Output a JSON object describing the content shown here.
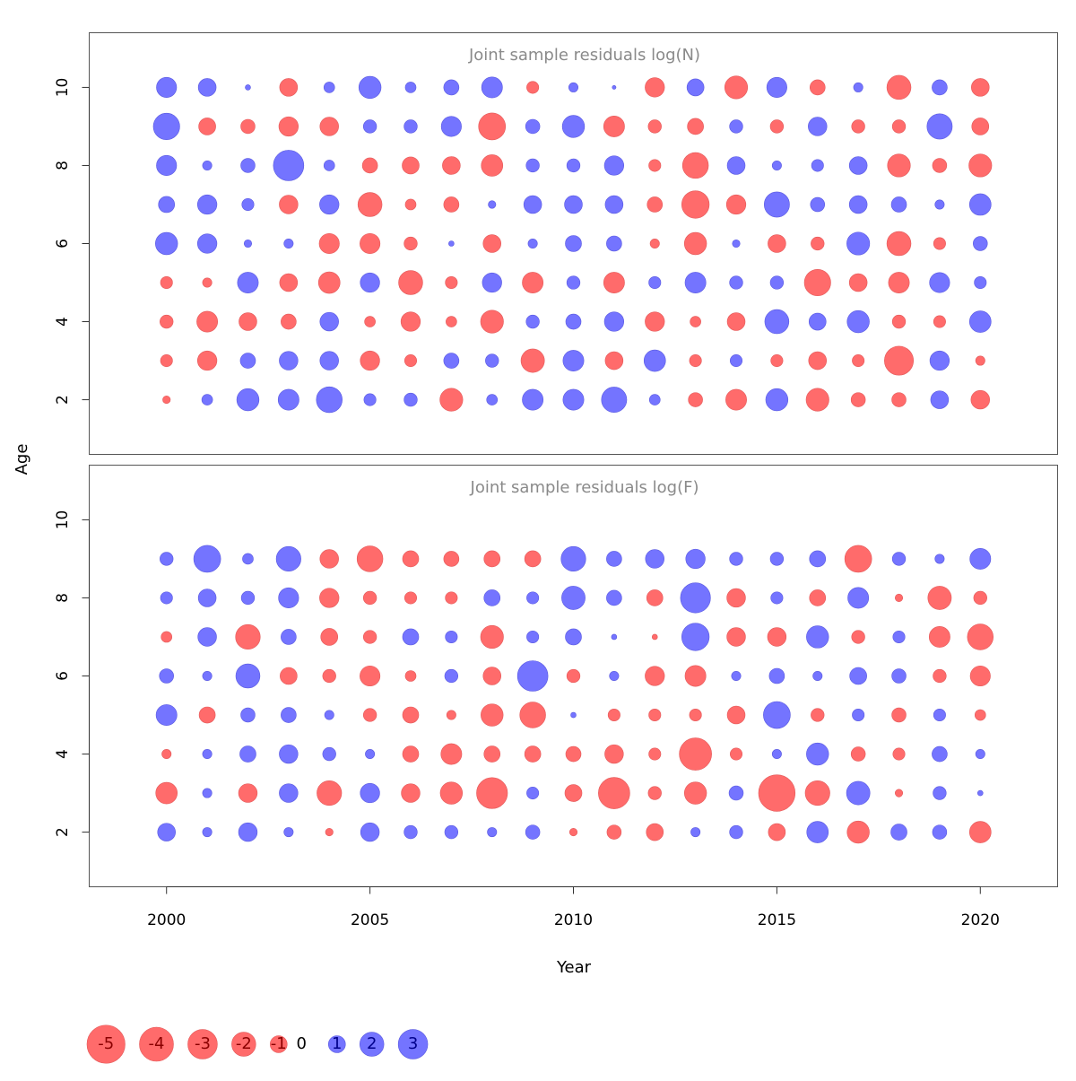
{
  "colors": {
    "negative": "#ff6b6b",
    "positive": "#7474ff",
    "negative_text": "#8b0000",
    "positive_text": "#00008b"
  },
  "chart_data": [
    {
      "type": "scatter",
      "style": "bubble",
      "title": "Joint sample residuals log(N)",
      "xlabel": "Year",
      "ylabel": "Age",
      "xlim": [
        1998.1,
        2021.9
      ],
      "ylim": [
        0.6,
        11.4
      ],
      "xticks": [
        "2000",
        "2005",
        "2010",
        "2015",
        "2020"
      ],
      "yticks": [
        "2",
        "4",
        "6",
        "8",
        "10"
      ],
      "years": [
        2000,
        2001,
        2002,
        2003,
        2004,
        2005,
        2006,
        2007,
        2008,
        2009,
        2010,
        2011,
        2012,
        2013,
        2014,
        2015,
        2016,
        2017,
        2018,
        2019,
        2020
      ],
      "ages": [
        2,
        3,
        4,
        5,
        6,
        7,
        8,
        9,
        10
      ],
      "residuals": [
        [
          -0.2,
          -0.5,
          -0.6,
          -0.5,
          1.7,
          0.9,
          1.4,
          2.4,
          1.4
        ],
        [
          0.4,
          -1.3,
          -1.5,
          -0.3,
          1.3,
          1.3,
          0.3,
          -1.0,
          1.1
        ],
        [
          1.7,
          0.8,
          -1.1,
          1.5,
          0.2,
          0.5,
          0.7,
          -0.7,
          0.1
        ],
        [
          1.5,
          1.2,
          -0.8,
          -1.1,
          0.3,
          -1.2,
          3.2,
          -1.3,
          -1.1
        ],
        [
          2.3,
          1.2,
          1.2,
          -1.6,
          -1.4,
          1.3,
          0.4,
          -1.2,
          0.4
        ],
        [
          0.5,
          -1.3,
          -0.4,
          1.3,
          -1.4,
          -2.0,
          -0.8,
          0.6,
          1.7
        ],
        [
          0.6,
          -0.5,
          -1.3,
          -2.0,
          -0.6,
          -0.4,
          -1.0,
          0.6,
          0.4
        ],
        [
          -1.8,
          0.8,
          -0.4,
          -0.5,
          0.1,
          -0.8,
          -1.1,
          1.4,
          0.8
        ],
        [
          0.4,
          0.6,
          -1.8,
          1.3,
          -1.1,
          0.2,
          -1.6,
          -2.5,
          1.5
        ],
        [
          1.5,
          -1.9,
          0.6,
          -1.5,
          0.3,
          1.1,
          0.6,
          0.7,
          -0.5
        ],
        [
          1.5,
          1.5,
          0.8,
          0.6,
          0.9,
          1.1,
          0.6,
          1.7,
          0.3
        ],
        [
          2.2,
          -1.1,
          1.3,
          -1.5,
          0.8,
          1.1,
          1.3,
          -1.5,
          0.05
        ],
        [
          0.4,
          1.6,
          -1.3,
          0.5,
          -0.3,
          -0.8,
          -0.5,
          -0.6,
          -1.3
        ],
        [
          -0.7,
          -0.5,
          -0.4,
          1.5,
          -1.7,
          -2.6,
          -2.3,
          -0.9,
          1.0
        ],
        [
          -1.5,
          0.5,
          -1.1,
          0.6,
          0.2,
          -1.3,
          1.1,
          0.6,
          -1.8
        ],
        [
          1.7,
          -0.5,
          2.0,
          0.6,
          -1.1,
          2.2,
          0.3,
          -0.6,
          1.4
        ],
        [
          -1.8,
          -1.1,
          1.0,
          -2.4,
          -0.6,
          0.7,
          0.5,
          1.2,
          -0.8
        ],
        [
          -0.7,
          -0.5,
          1.7,
          -1.1,
          1.8,
          1.1,
          1.1,
          -0.6,
          0.3
        ],
        [
          -0.7,
          -2.9,
          -0.6,
          -1.5,
          -2.0,
          0.8,
          -1.8,
          -0.6,
          -2.0
        ],
        [
          1.1,
          1.3,
          -0.5,
          1.4,
          -0.5,
          0.3,
          -0.7,
          2.2,
          0.8
        ],
        [
          -1.2,
          -0.3,
          1.6,
          0.5,
          0.7,
          1.6,
          -1.8,
          -1.0,
          -1.1
        ]
      ]
    },
    {
      "type": "scatter",
      "style": "bubble",
      "title": "Joint sample residuals log(F)",
      "xlabel": "Year",
      "ylabel": "Age",
      "xlim": [
        1998.1,
        2021.9
      ],
      "ylim": [
        0.6,
        11.4
      ],
      "xticks": [
        "2000",
        "2005",
        "2010",
        "2015",
        "2020"
      ],
      "yticks": [
        "2",
        "4",
        "6",
        "8",
        "10"
      ],
      "years": [
        2000,
        2001,
        2002,
        2003,
        2004,
        2005,
        2006,
        2007,
        2008,
        2009,
        2010,
        2011,
        2012,
        2013,
        2014,
        2015,
        2016,
        2017,
        2018,
        2019,
        2020
      ],
      "ages": [
        2,
        3,
        4,
        5,
        6,
        7,
        8,
        9
      ],
      "residuals": [
        [
          1.1,
          -1.6,
          -0.3,
          1.5,
          0.7,
          -0.4,
          0.5,
          0.6
        ],
        [
          0.3,
          0.3,
          0.3,
          -0.9,
          0.3,
          1.2,
          1.1,
          2.5
        ],
        [
          1.2,
          -1.2,
          0.9,
          0.7,
          2.0,
          -2.1,
          0.6,
          0.4
        ],
        [
          0.3,
          1.2,
          1.2,
          0.8,
          -1.0,
          0.8,
          1.4,
          2.1
        ],
        [
          -0.2,
          -2.1,
          0.6,
          0.3,
          -0.6,
          -1.0,
          -1.3,
          -1.2
        ],
        [
          1.2,
          1.3,
          0.3,
          -0.6,
          -1.4,
          -0.6,
          -0.6,
          -2.3
        ],
        [
          0.6,
          -1.2,
          -0.9,
          -0.9,
          -0.4,
          0.9,
          -0.5,
          -0.9
        ],
        [
          0.6,
          -1.7,
          -1.5,
          -0.3,
          0.6,
          0.5,
          -0.5,
          -0.8
        ],
        [
          0.3,
          -3.3,
          -0.9,
          -1.7,
          -1.1,
          -1.8,
          0.9,
          -0.9
        ],
        [
          0.7,
          0.5,
          -0.9,
          -2.3,
          3.2,
          0.5,
          0.5,
          -0.9
        ],
        [
          -0.2,
          -1.0,
          -0.8,
          0.1,
          -0.6,
          0.9,
          1.9,
          2.1
        ],
        [
          -0.7,
          -3.4,
          -1.2,
          -0.5,
          0.3,
          0.1,
          0.8,
          0.8
        ],
        [
          -1.0,
          -0.6,
          -0.5,
          -0.5,
          -1.3,
          -0.1,
          -0.9,
          1.2
        ],
        [
          0.3,
          -1.7,
          -3.6,
          -0.5,
          -1.5,
          2.6,
          3.1,
          1.3
        ],
        [
          0.6,
          0.7,
          -0.5,
          -1.1,
          0.3,
          -1.2,
          -1.2,
          0.6
        ],
        [
          -1.0,
          -4.6,
          0.3,
          2.5,
          0.8,
          -1.2,
          0.5,
          0.6
        ],
        [
          1.6,
          -2.1,
          1.7,
          -0.6,
          0.3,
          1.7,
          -0.9,
          0.9
        ],
        [
          -1.7,
          1.9,
          -0.7,
          0.5,
          1.0,
          -0.6,
          1.5,
          -2.5
        ],
        [
          0.9,
          -0.2,
          -0.5,
          -0.7,
          0.7,
          0.5,
          -0.2,
          0.6
        ],
        [
          0.7,
          0.6,
          0.8,
          0.5,
          -0.6,
          -1.5,
          -1.9,
          0.3
        ],
        [
          -1.6,
          0.1,
          0.3,
          -0.4,
          -1.4,
          -2.3,
          -0.6,
          1.5
        ]
      ]
    }
  ],
  "legend": {
    "items": [
      {
        "label": "-5",
        "value": -5
      },
      {
        "label": "-4",
        "value": -4
      },
      {
        "label": "-3",
        "value": -3
      },
      {
        "label": "-2",
        "value": -2
      },
      {
        "label": "-1",
        "value": -1
      },
      {
        "label": "0",
        "value": 0
      },
      {
        "label": "1",
        "value": 1
      },
      {
        "label": "2",
        "value": 2
      },
      {
        "label": "3",
        "value": 3
      }
    ]
  }
}
